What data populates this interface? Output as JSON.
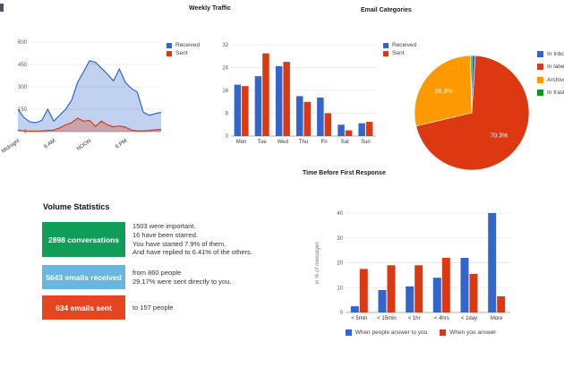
{
  "palette": {
    "received_blue": "#3366CC",
    "sent_red": "#DC3912",
    "archive_orange": "#FF9900",
    "trash_green": "#109618",
    "grid": "#E6E6E6",
    "baseline": "#B0B0B0",
    "axis_text": "#555555",
    "stat_green": "#0F9D58",
    "stat_blue": "#67B7E1",
    "stat_red": "#E5461F"
  },
  "chart_data": [
    {
      "id": "daily_traffic",
      "type": "area",
      "title": "",
      "x_labels": [
        "Midnight",
        "6 AM",
        "NOON",
        "6 PM"
      ],
      "x_hours": [
        0,
        6,
        12,
        18
      ],
      "x_range_hours": [
        0,
        24
      ],
      "y_ticks": [
        0,
        150,
        300,
        450,
        600
      ],
      "ylim": [
        0,
        600
      ],
      "grid": true,
      "legend_position": "right",
      "series": [
        {
          "name": "Received",
          "color": "#3366CC",
          "values": [
            150,
            95,
            65,
            60,
            75,
            150,
            70,
            110,
            150,
            210,
            330,
            400,
            475,
            465,
            425,
            385,
            340,
            420,
            330,
            290,
            265,
            130,
            110,
            120,
            130
          ]
        },
        {
          "name": "Sent",
          "color": "#DC3912",
          "values": [
            10,
            5,
            3,
            3,
            5,
            8,
            10,
            25,
            45,
            60,
            90,
            70,
            75,
            35,
            70,
            45,
            32,
            38,
            30,
            10,
            5,
            5,
            8,
            12,
            15
          ]
        }
      ]
    },
    {
      "id": "weekly_traffic",
      "type": "bar",
      "title": "Weekly Traffic",
      "categories": [
        "Mon",
        "Tue",
        "Wed",
        "Thu",
        "Fri",
        "Sat",
        "Sun"
      ],
      "y_ticks": [
        0,
        8,
        16,
        24,
        32
      ],
      "ylim": [
        0,
        32
      ],
      "grid": true,
      "legend_position": "right",
      "series": [
        {
          "name": "Received",
          "color": "#3366CC",
          "values": [
            18,
            21,
            24.5,
            14,
            13.5,
            4,
            4.5
          ]
        },
        {
          "name": "Sent",
          "color": "#DC3912",
          "values": [
            17.5,
            29,
            26,
            12,
            8,
            2,
            5
          ]
        }
      ]
    },
    {
      "id": "email_categories",
      "type": "pie",
      "title": "Email Categories",
      "legend_position": "right",
      "slices": [
        {
          "label": "In Inbox",
          "color": "#3366CC",
          "value": 1.0
        },
        {
          "label": "In labels",
          "color": "#DC3912",
          "value": 70.3,
          "display": "70.3%"
        },
        {
          "label": "Archived",
          "color": "#FF9900",
          "value": 28.3,
          "display": "28.3%"
        },
        {
          "label": "In trash",
          "color": "#109618",
          "value": 0.4
        }
      ]
    },
    {
      "id": "response_time",
      "type": "bar",
      "title": "Time Before First Response",
      "ylabel": "in % of messages",
      "categories": [
        "< 5min",
        "< 15min",
        "< 1hr",
        "< 4hrs",
        "< 1day",
        "More"
      ],
      "y_ticks": [
        0,
        10,
        20,
        30,
        40
      ],
      "ylim": [
        0,
        40
      ],
      "grid": true,
      "legend_position": "bottom",
      "series": [
        {
          "name": "When people answer to you",
          "color": "#3366CC",
          "values": [
            2.5,
            9,
            10.5,
            14,
            22,
            40
          ]
        },
        {
          "name": "When you answer",
          "color": "#DC3912",
          "values": [
            17.5,
            19,
            19,
            22,
            15.5,
            6.5
          ]
        }
      ]
    }
  ],
  "volume_statistics": {
    "title": "Volume Statistics",
    "items": [
      {
        "label": "2898 conversations",
        "color": "#0F9D58",
        "lines": [
          "1503 were important.",
          "16 have been starred.",
          "You have started 7.9% of them.",
          "And have replied to 6.41% of the others."
        ]
      },
      {
        "label": "5643 emails received",
        "color": "#67B7E1",
        "lines": [
          "from 860 people",
          "29.17% were sent directly to you."
        ]
      },
      {
        "label": "634 emails sent",
        "color": "#E5461F",
        "lines": [
          "to 157 people"
        ]
      }
    ]
  }
}
